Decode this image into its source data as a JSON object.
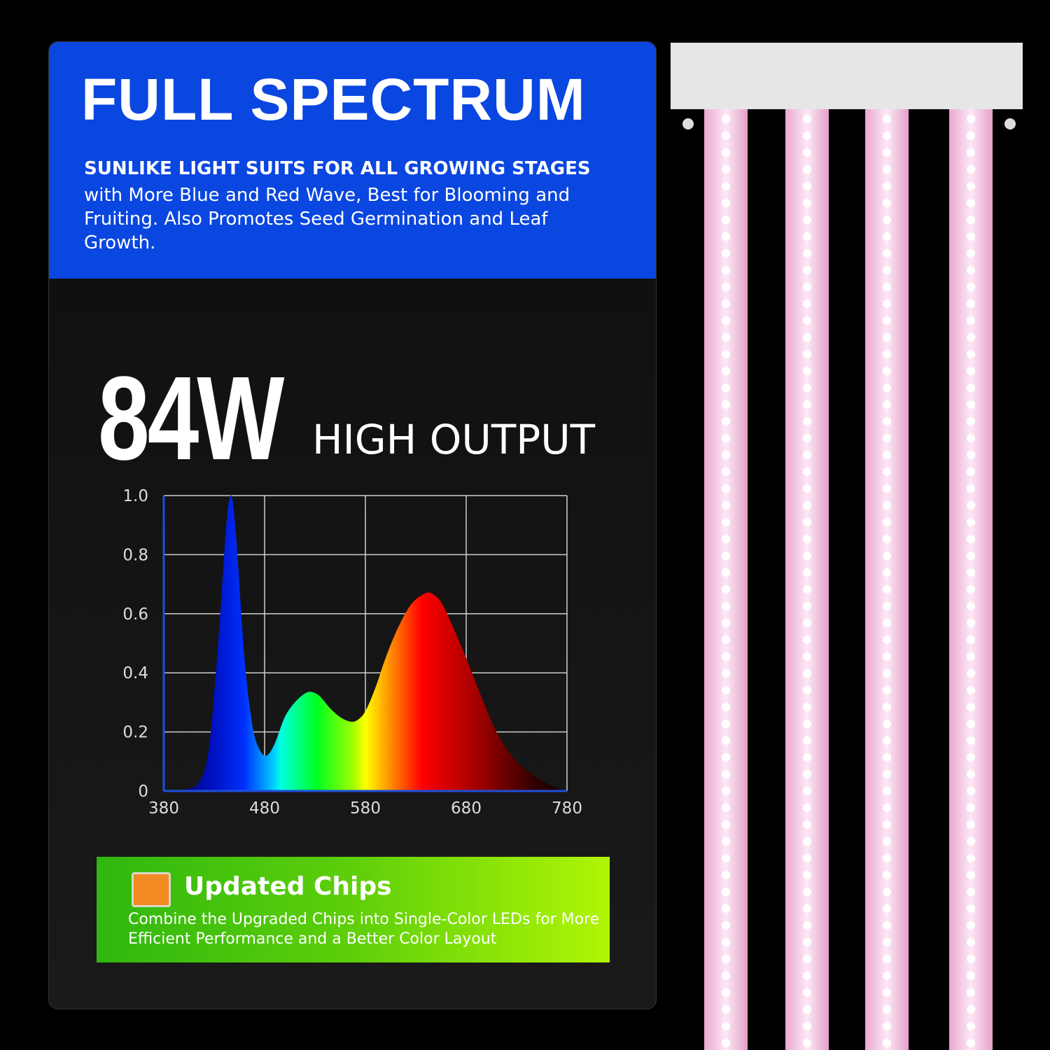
{
  "header": {
    "title": "FULL SPECTRUM",
    "subtitle": "SUNLIKE LIGHT SUITS FOR ALL GROWING STAGES",
    "description": "with More Blue and Red Wave, Best for Blooming and Fruiting. Also Promotes Seed Germination and Leaf Growth.",
    "color": "#0a46e0"
  },
  "power": {
    "value": "84W",
    "label": "HIGH OUTPUT"
  },
  "chips": {
    "title": "Updated Chips",
    "description": "Combine the Upgraded Chips into Single-Color LEDs for More Efficient Performance and a Better Color Layout",
    "icon": "led-chip-icon"
  },
  "chart_data": {
    "type": "area",
    "xlabel": "",
    "ylabel": "",
    "xlim": [
      380,
      780
    ],
    "ylim": [
      0,
      1.0
    ],
    "xticks": [
      "380",
      "480",
      "580",
      "680",
      "780"
    ],
    "yticks": [
      "0",
      "0.2",
      "0.4",
      "0.6",
      "0.8",
      "1.0"
    ],
    "grid": true,
    "fill": "visible-spectrum gradient",
    "x": [
      380,
      400,
      415,
      425,
      435,
      442,
      447,
      452,
      460,
      468,
      475,
      482,
      490,
      500,
      510,
      520,
      527,
      535,
      545,
      555,
      565,
      572,
      580,
      590,
      600,
      612,
      625,
      637,
      645,
      655,
      665,
      680,
      695,
      710,
      725,
      740,
      755,
      770,
      780
    ],
    "y": [
      0,
      0.005,
      0.03,
      0.15,
      0.55,
      0.9,
      1.0,
      0.85,
      0.45,
      0.22,
      0.14,
      0.12,
      0.16,
      0.25,
      0.3,
      0.33,
      0.335,
      0.32,
      0.28,
      0.25,
      0.235,
      0.24,
      0.27,
      0.35,
      0.45,
      0.55,
      0.63,
      0.665,
      0.67,
      0.64,
      0.57,
      0.45,
      0.32,
      0.2,
      0.12,
      0.07,
      0.035,
      0.01,
      0
    ]
  }
}
